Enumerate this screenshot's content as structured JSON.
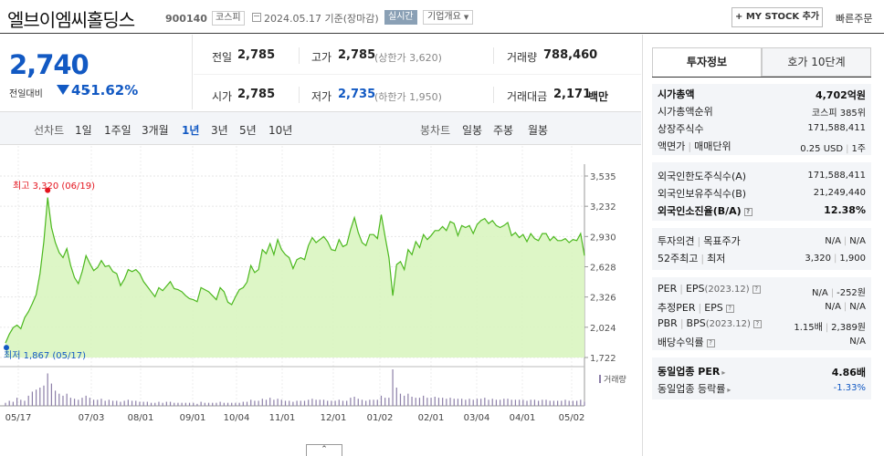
{
  "header": {
    "company_name": "엘브이엠씨홀딩스",
    "stock_code": "900140",
    "market_badge": "코스피",
    "date": "2024.05.17 기준(장마감)",
    "realtime_badge": "실시간",
    "overview_dropdown": "기업개요",
    "mystock_button": "+ MY STOCK 추가",
    "quick_order": "빠른주문"
  },
  "price": {
    "current": "2,740",
    "compare_label": "전일대비",
    "change": "45",
    "change_direction": "down",
    "change_pct": "-1.62%"
  },
  "stats": {
    "prev_close_label": "전일",
    "prev_close": "2,785",
    "high_label": "고가",
    "high": "2,785",
    "high_limit": "(상한가 3,620)",
    "volume_label": "거래량",
    "volume": "788,460",
    "open_label": "시가",
    "open": "2,785",
    "low_label": "저가",
    "low": "2,735",
    "low_limit": "(하한가 1,950)",
    "trade_value_label": "거래대금",
    "trade_value": "2,171",
    "trade_value_unit": "백만"
  },
  "chart_tabs": {
    "line_chart_label": "선차트",
    "periods": [
      "1일",
      "1주일",
      "3개월",
      "1년",
      "3년",
      "5년",
      "10년"
    ],
    "active_period": "1년",
    "candle_label": "봉차트",
    "candles": [
      "일봉",
      "주봉",
      "월봉"
    ]
  },
  "right_tabs": {
    "investment_info": "투자정보",
    "order_book": "호가 10단계"
  },
  "invest": {
    "market_cap_label": "시가총액",
    "market_cap": "4,702억원",
    "market_cap_rank_label": "시가총액순위",
    "market_cap_rank": "코스피 385위",
    "shares_label": "상장주식수",
    "shares": "171,588,411",
    "par_label": "액면가",
    "trade_unit_label": "매매단위",
    "par": "0.25 USD",
    "trade_unit": "1주",
    "foreign_limit_label": "외국인한도주식수(A)",
    "foreign_limit": "171,588,411",
    "foreign_hold_label": "외국인보유주식수(B)",
    "foreign_hold": "21,249,440",
    "foreign_ratio_label": "외국인소진율(B/A)",
    "foreign_ratio": "12.38%",
    "opinion_label": "투자의견",
    "target_label": "목표주가",
    "opinion": "N/A",
    "target": "N/A",
    "week52_high_label": "52주최고",
    "week52_low_label": "최저",
    "week52_high": "3,320",
    "week52_low": "1,900",
    "per_label": "PER",
    "eps_label": "EPS",
    "eps_period": "(2023.12)",
    "per": "N/A",
    "eps": "-252원",
    "est_per_label": "추정PER",
    "est_eps_label": "EPS",
    "est_per": "N/A",
    "est_eps": "N/A",
    "pbr_label": "PBR",
    "bps_label": "BPS",
    "bps_period": "(2023.12)",
    "pbr": "1.15배",
    "bps": "2,389원",
    "dividend_label": "배당수익률",
    "dividend": "N/A",
    "industry_per_label": "동일업종 PER",
    "industry_per": "4.86배",
    "industry_chg_label": "동일업종 등락률",
    "industry_chg": "-1.33%",
    "info_icon": "?"
  },
  "colors": {
    "down_blue": "#1259c3",
    "up_red": "#e4141e",
    "area_fill": "#d9f5c0",
    "line_green": "#4cb81e"
  },
  "chart_data": {
    "type": "area",
    "title": "",
    "xlabel": "",
    "ylabel": "",
    "ylim": [
      1722,
      3535
    ],
    "y_ticks": [
      "3,535",
      "3,232",
      "2,930",
      "2,628",
      "2,326",
      "2,024",
      "1,722"
    ],
    "x_ticks": [
      "05/17",
      "07/03",
      "08/01",
      "09/01",
      "10/04",
      "11/01",
      "12/01",
      "01/02",
      "02/01",
      "03/04",
      "04/01",
      "05/02"
    ],
    "grid": true,
    "high_label": "최고 3,320 (06/19)",
    "low_label": "최저 1,867 (05/17)",
    "volume_label": "거래량",
    "price_values": [
      1867,
      1955,
      2020,
      2045,
      2010,
      2120,
      2180,
      2260,
      2350,
      2560,
      2880,
      3320,
      3020,
      2870,
      2770,
      2720,
      2810,
      2640,
      2520,
      2460,
      2580,
      2740,
      2660,
      2590,
      2620,
      2690,
      2630,
      2640,
      2580,
      2560,
      2440,
      2505,
      2600,
      2580,
      2600,
      2560,
      2480,
      2430,
      2380,
      2330,
      2420,
      2390,
      2435,
      2480,
      2410,
      2400,
      2380,
      2340,
      2310,
      2300,
      2280,
      2420,
      2400,
      2380,
      2340,
      2300,
      2420,
      2380,
      2275,
      2250,
      2330,
      2400,
      2420,
      2475,
      2640,
      2570,
      2600,
      2800,
      2760,
      2860,
      2750,
      2900,
      2800,
      2750,
      2720,
      2610,
      2700,
      2720,
      2700,
      2840,
      2920,
      2870,
      2900,
      2930,
      2880,
      2800,
      2790,
      2900,
      2830,
      2850,
      3000,
      3120,
      2970,
      2870,
      2840,
      2950,
      2950,
      2910,
      3150,
      2930,
      2720,
      2340,
      2650,
      2680,
      2600,
      2800,
      2750,
      2880,
      2820,
      2950,
      2900,
      2940,
      2990,
      2990,
      3030,
      2990,
      3080,
      3060,
      2940,
      3040,
      3020,
      3040,
      2960,
      3050,
      3090,
      3110,
      3060,
      3090,
      3040,
      3020,
      3040,
      3070,
      2940,
      2970,
      2920,
      2950,
      2880,
      2960,
      2910,
      2890,
      2960,
      2960,
      2890,
      2930,
      2890,
      2890,
      2910,
      2870,
      2900,
      2890,
      2960,
      2740
    ],
    "volume_values": [
      3,
      5,
      4,
      8,
      6,
      5,
      10,
      14,
      16,
      18,
      20,
      32,
      22,
      15,
      12,
      10,
      12,
      8,
      7,
      6,
      8,
      10,
      8,
      6,
      6,
      7,
      5,
      6,
      5,
      5,
      4,
      5,
      6,
      5,
      5,
      4,
      4,
      4,
      3,
      3,
      4,
      3,
      4,
      4,
      3,
      3,
      3,
      3,
      3,
      3,
      2,
      4,
      3,
      3,
      3,
      3,
      4,
      3,
      3,
      3,
      3,
      3,
      4,
      4,
      6,
      5,
      5,
      7,
      6,
      8,
      6,
      7,
      6,
      5,
      5,
      4,
      5,
      5,
      5,
      6,
      7,
      6,
      6,
      6,
      5,
      5,
      5,
      6,
      5,
      5,
      8,
      9,
      7,
      6,
      5,
      6,
      6,
      6,
      10,
      8,
      8,
      36,
      18,
      12,
      10,
      12,
      9,
      8,
      8,
      10,
      8,
      8,
      9,
      8,
      8,
      7,
      8,
      7,
      7,
      7,
      6,
      7,
      6,
      7,
      7,
      8,
      6,
      7,
      6,
      6,
      7,
      7,
      6,
      6,
      6,
      6,
      5,
      6,
      6,
      5,
      6,
      6,
      5,
      5,
      5,
      5,
      6,
      5,
      5,
      5,
      6,
      4
    ]
  }
}
